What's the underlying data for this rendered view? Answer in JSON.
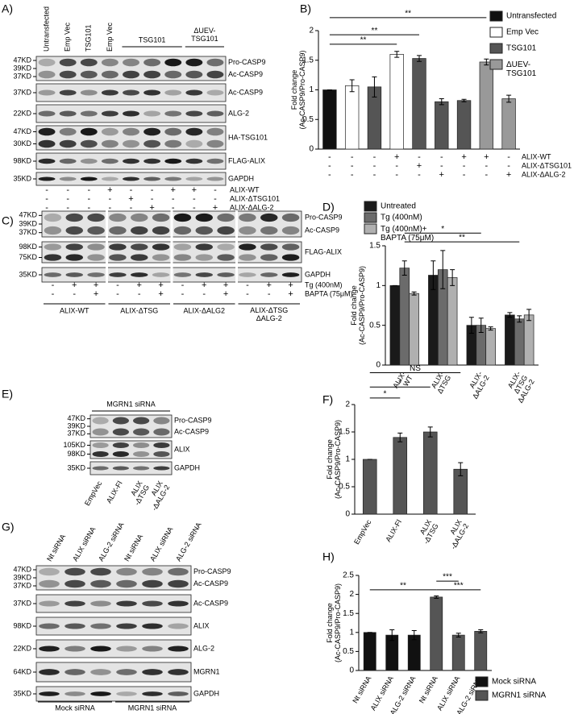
{
  "figure": {
    "blots": [
      {
        "panel": "A)",
        "lanes": [
          "Untransfected",
          "Emp Vec",
          "TSG101",
          "Emp Vec",
          null,
          null,
          null,
          null,
          null
        ],
        "lane_groups": [
          "TSG101",
          [
            "ΔUEV-",
            "TSG101"
          ]
        ],
        "rows": [
          {
            "markers": [
              "47KD",
              "39KD",
              "37KD"
            ],
            "labels": [
              "Pro-CASP9",
              "Ac-CASP9"
            ]
          },
          {
            "markers": [
              "37KD"
            ],
            "labels": [
              "Ac-CASP9"
            ]
          },
          {
            "markers": [
              "22KD"
            ],
            "labels": [
              "ALG-2"
            ]
          },
          {
            "markers": [
              "47KD",
              "30KD"
            ],
            "labels": [
              "HA-TSG101"
            ]
          },
          {
            "markers": [
              "98KD"
            ],
            "labels": [
              "FLAG-ALIX"
            ]
          },
          {
            "markers": [
              "35KD"
            ],
            "labels": [
              "GAPDH"
            ]
          }
        ],
        "conditions": [
          {
            "name": "ALIX-WT",
            "signs": [
              "-",
              "-",
              "-",
              "+",
              "-",
              "-",
              "+",
              "+",
              "-"
            ]
          },
          {
            "name": "ALIX-ΔTSG101",
            "signs": [
              "-",
              "-",
              "-",
              "-",
              "+",
              "-",
              "-",
              "-",
              "-"
            ]
          },
          {
            "name": "ALIX-ΔALG-2",
            "signs": [
              "-",
              "-",
              "-",
              "-",
              "-",
              "+",
              "-",
              "-",
              "+"
            ]
          }
        ]
      },
      {
        "panel": "C)",
        "lane_groups": [
          "ALIX-WT",
          "ALIX-ΔTSG",
          "ALIX-ΔALG2",
          [
            "ALIX-ΔTSG",
            "ΔALG-2"
          ]
        ],
        "rows": [
          {
            "markers": [
              "47KD",
              "39KD",
              "37KD"
            ],
            "labels": [
              "Pro-CASP9",
              "Ac-CASP9"
            ]
          },
          {
            "markers": [
              "98KD",
              "75KD"
            ],
            "labels": [
              "FLAG-ALIX"
            ]
          },
          {
            "markers": [
              "35KD"
            ],
            "labels": [
              "GAPDH"
            ]
          }
        ],
        "conditions": [
          {
            "name": "Tg (400nM)",
            "signs": [
              "-",
              "+",
              "+",
              "-",
              "+",
              "+",
              "-",
              "+",
              "+",
              "-",
              "+",
              "+"
            ]
          },
          {
            "name": "BAPTA (75μM)",
            "signs": [
              "-",
              "-",
              "+",
              "-",
              "-",
              "+",
              "-",
              "-",
              "+",
              "-",
              "-",
              "+"
            ]
          }
        ]
      },
      {
        "panel": "E)",
        "lanes": [
          "EmpVec",
          "ALIX-Fl",
          [
            "ALIX",
            "-ΔTSG"
          ],
          [
            "ALIX",
            "-ΔALG-2"
          ]
        ],
        "lane_groups": [
          "MGRN1 siRNA"
        ],
        "rows": [
          {
            "markers": [
              "47KD",
              "39KD",
              "37KD"
            ],
            "labels": [
              "Pro-CASP9",
              "Ac-CASP9"
            ]
          },
          {
            "markers": [
              "105KD",
              "98KD"
            ],
            "labels": [
              "ALIX"
            ]
          },
          {
            "markers": [
              "35KD"
            ],
            "labels": [
              "GAPDH"
            ]
          }
        ]
      },
      {
        "panel": "G)",
        "lanes": [
          "Nt siRNA",
          "ALIX siRNA",
          "ALG-2 siRNA",
          "Nt siRNA",
          "ALIX siRNA",
          "ALG-2 siRNA"
        ],
        "lane_groups": [
          "Mock siRNA",
          "MGRN1 siRNA"
        ],
        "rows": [
          {
            "markers": [
              "47KD",
              "39KD",
              "37KD"
            ],
            "labels": [
              "Pro-CASP9",
              "Ac-CASP9"
            ]
          },
          {
            "markers": [
              "37KD"
            ],
            "labels": [
              "Ac-CASP9"
            ]
          },
          {
            "markers": [
              "98KD"
            ],
            "labels": [
              "ALIX"
            ]
          },
          {
            "markers": [
              "22KD"
            ],
            "labels": [
              "ALG-2"
            ]
          },
          {
            "markers": [
              "64KD"
            ],
            "labels": [
              "MGRN1"
            ]
          },
          {
            "markers": [
              "35KD"
            ],
            "labels": [
              "GAPDH"
            ]
          }
        ]
      }
    ]
  },
  "chart_data": [
    {
      "type": "bar",
      "panel": "B)",
      "ylabel": [
        "Fold change",
        "(Ac-CASP9/Pro-CASP9)"
      ],
      "categories": [
        null,
        null,
        null,
        null,
        null,
        null,
        null,
        null,
        null
      ],
      "series": [
        {
          "name": "Untransfected",
          "color": "#111111",
          "values": [
            1,
            null,
            null,
            null,
            null,
            null,
            null,
            null,
            null
          ],
          "errors": [
            0,
            null,
            null,
            null,
            null,
            null,
            null,
            null,
            null
          ]
        },
        {
          "name": "Emp Vec",
          "color": "#ffffff",
          "values": [
            null,
            1.07,
            null,
            1.6,
            null,
            null,
            null,
            null,
            null
          ],
          "errors": [
            null,
            0.1,
            null,
            0.05,
            null,
            null,
            null,
            null,
            null
          ]
        },
        {
          "name": "TSG101",
          "color": "#555555",
          "values": [
            null,
            null,
            1.05,
            null,
            1.53,
            0.8,
            0.82,
            null,
            null
          ],
          "errors": [
            null,
            null,
            0.17,
            null,
            0.05,
            0.05,
            0.02,
            null,
            null
          ]
        },
        {
          "name": [
            "ΔUEV-",
            "TSG101"
          ],
          "color": "#999999",
          "values": [
            null,
            null,
            null,
            null,
            null,
            null,
            null,
            1.47,
            0.85
          ],
          "errors": [
            null,
            null,
            null,
            null,
            null,
            null,
            null,
            0.05,
            0.06
          ]
        }
      ],
      "ylim": [
        0,
        2
      ],
      "yticks": [
        0,
        0.5,
        1,
        1.5,
        2
      ],
      "conditions": [
        {
          "name": "ALIX-WT",
          "signs": [
            "-",
            "-",
            "-",
            "+",
            "-",
            "-",
            "+",
            "+",
            "-"
          ]
        },
        {
          "name": "ALIX-ΔTSG101",
          "signs": [
            "-",
            "-",
            "-",
            "-",
            "+",
            "-",
            "-",
            "-",
            "-"
          ]
        },
        {
          "name": "ALIX-ΔALG-2",
          "signs": [
            "-",
            "-",
            "-",
            "-",
            "-",
            "+",
            "-",
            "-",
            "+"
          ]
        }
      ],
      "annotations": [
        "**",
        "**",
        "**"
      ]
    },
    {
      "type": "bar",
      "panel": "D)",
      "ylabel": [
        "Fold change",
        "(Ac-CASP9/Pro-CASP9)"
      ],
      "categories": [
        [
          "ALIX-",
          "WT"
        ],
        [
          "ALIX-",
          "ΔTSG"
        ],
        [
          "ALIX-",
          "ΔALG-2"
        ],
        [
          "ALIX-",
          "ΔTSG",
          "ΔALG-2"
        ]
      ],
      "series": [
        {
          "name": "Untreated",
          "color": "#1a1a1a",
          "values": [
            1,
            1.13,
            0.5,
            0.63
          ],
          "errors": [
            0,
            0.18,
            0.1,
            0.03
          ]
        },
        {
          "name": "Tg (400nM)",
          "color": "#6b6b6b",
          "values": [
            1.22,
            1.2,
            0.5,
            0.58
          ],
          "errors": [
            0.09,
            0.24,
            0.09,
            0.04
          ]
        },
        {
          "name": [
            "Tg (400nM)+",
            "BAPTA (75μM)"
          ],
          "color": "#b0b0b0",
          "values": [
            0.9,
            1.1,
            0.46,
            0.63
          ],
          "errors": [
            0.02,
            0.1,
            0.02,
            0.07
          ]
        }
      ],
      "ylim": [
        0,
        1.5
      ],
      "yticks": [
        0,
        0.5,
        1,
        1.5
      ],
      "annotations": [
        "*",
        "**"
      ]
    },
    {
      "type": "bar",
      "panel": "F)",
      "ylabel": [
        "Fold change",
        "(Ac-CASP9/Pro-CASP9)"
      ],
      "categories": [
        "EmpVec",
        "ALIX-Fl",
        [
          "ALIX",
          "-ΔTSG"
        ],
        [
          "ALIX",
          "-ΔALG-2"
        ]
      ],
      "values": [
        1,
        1.4,
        1.5,
        0.82
      ],
      "errors": [
        0,
        0.08,
        0.09,
        0.12
      ],
      "color": "#555555",
      "ylim": [
        0,
        2
      ],
      "yticks": [
        0,
        0.5,
        1,
        1.5,
        2
      ],
      "annotations": [
        "NS",
        "*",
        "*"
      ]
    },
    {
      "type": "bar",
      "panel": "H)",
      "ylabel": [
        "Fold change",
        "(Ac-CASP9/Pro-CASP9)"
      ],
      "categories": [
        "Nt siRNA",
        "ALIX siRNA",
        "ALG-2 siRNA",
        "Nt siRNA",
        "ALIX siRNA",
        "ALG-2 siRNA"
      ],
      "series": [
        {
          "name": "Mock siRNA",
          "color": "#111111",
          "values": [
            1,
            0.93,
            0.93,
            null,
            null,
            null
          ],
          "errors": [
            0,
            0.14,
            0.12,
            null,
            null,
            null
          ]
        },
        {
          "name": "MGRN1 siRNA",
          "color": "#555555",
          "values": [
            null,
            null,
            null,
            1.93,
            0.93,
            1.03
          ],
          "errors": [
            null,
            null,
            null,
            0.03,
            0.05,
            0.04
          ]
        }
      ],
      "ylim": [
        0,
        2.5
      ],
      "yticks": [
        0,
        0.5,
        1,
        1.5,
        2,
        2.5
      ],
      "annotations": [
        "**",
        "***",
        "***"
      ]
    }
  ]
}
